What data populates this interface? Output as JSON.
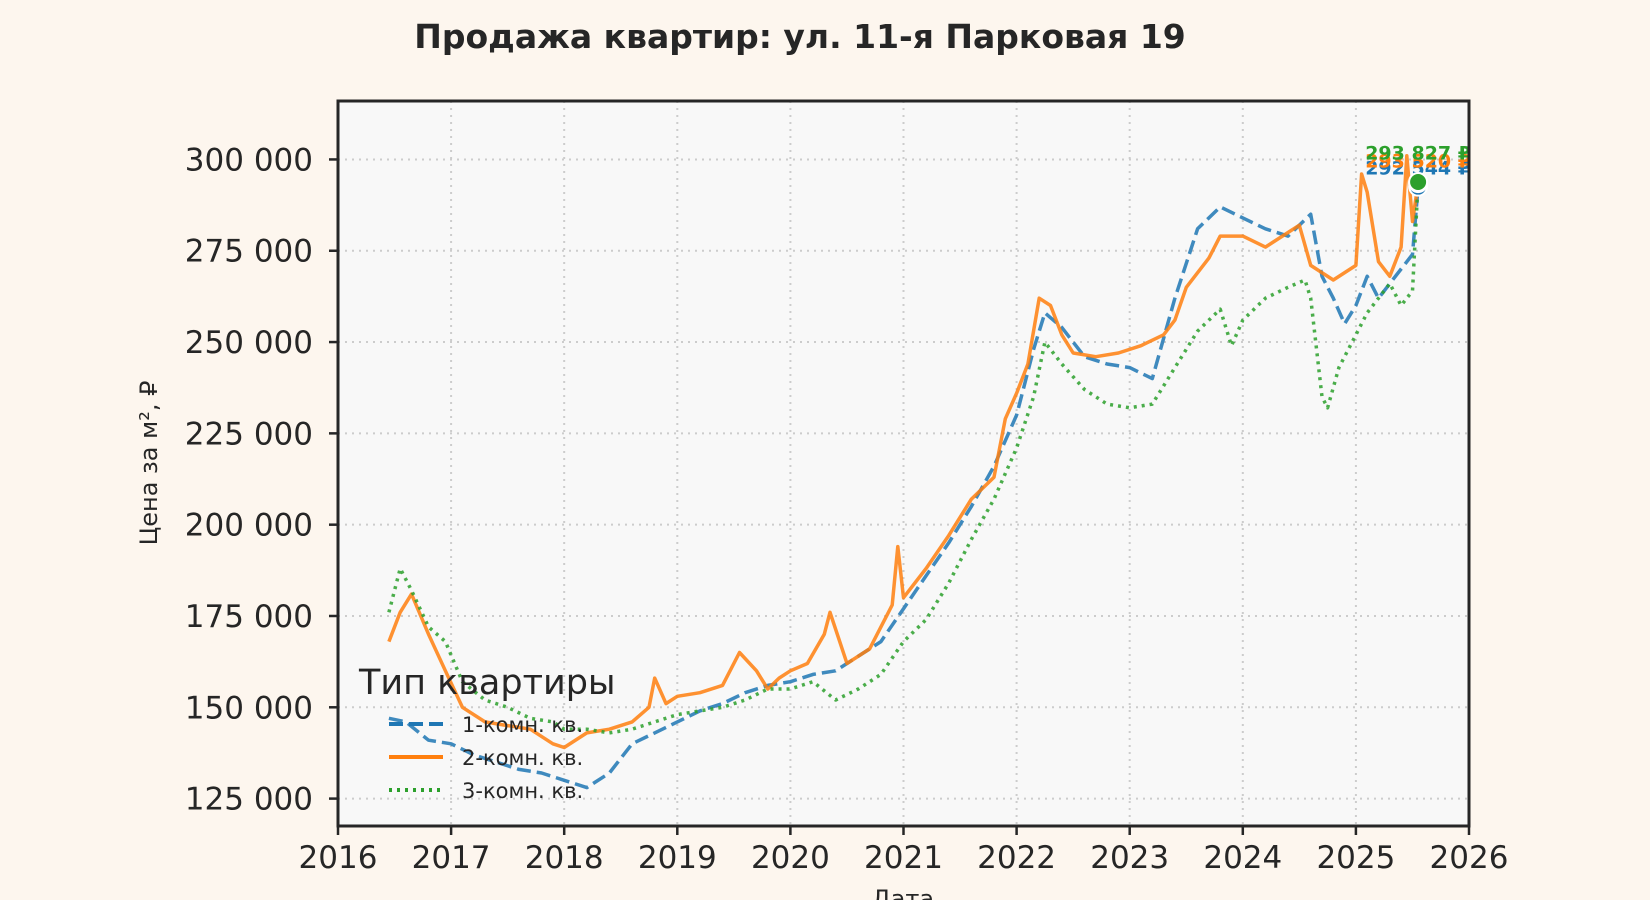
{
  "chart_data": {
    "type": "line",
    "title": "Продажа квартир: ул. 11-я Парковая 19",
    "xlabel": "Дата",
    "ylabel": "Цена за м², ₽",
    "xlim": [
      2016.0,
      2026.0
    ],
    "ylim": [
      117500,
      316000
    ],
    "x_ticks": [
      2016,
      2017,
      2018,
      2019,
      2020,
      2021,
      2022,
      2023,
      2024,
      2025,
      2026
    ],
    "y_ticks": [
      125000,
      150000,
      175000,
      200000,
      225000,
      250000,
      275000,
      300000
    ],
    "y_tick_labels": [
      "125 000",
      "150 000",
      "175 000",
      "200 000",
      "225 000",
      "250 000",
      "275 000",
      "300 000"
    ],
    "grid": true,
    "legend": {
      "title": "Тип квартиры",
      "placement": "lower-left"
    },
    "series": [
      {
        "name": "1-комн. кв.",
        "color": "#1f77b4",
        "dash": "dashed",
        "end_label": "292 544 ₽",
        "x": [
          2016.45,
          2016.6,
          2016.8,
          2017.0,
          2017.2,
          2017.4,
          2017.6,
          2017.8,
          2018.0,
          2018.2,
          2018.4,
          2018.6,
          2018.8,
          2019.0,
          2019.2,
          2019.4,
          2019.6,
          2019.8,
          2020.0,
          2020.2,
          2020.4,
          2020.6,
          2020.8,
          2021.0,
          2021.2,
          2021.4,
          2021.6,
          2021.8,
          2022.0,
          2022.15,
          2022.25,
          2022.4,
          2022.6,
          2022.8,
          2023.0,
          2023.2,
          2023.4,
          2023.6,
          2023.8,
          2024.0,
          2024.2,
          2024.4,
          2024.6,
          2024.7,
          2024.8,
          2024.9,
          2025.0,
          2025.1,
          2025.2,
          2025.3,
          2025.4,
          2025.5,
          2025.55
        ],
        "y": [
          147000,
          146000,
          141000,
          140000,
          137000,
          135000,
          133000,
          132000,
          130000,
          128000,
          132000,
          140000,
          143000,
          146000,
          149000,
          151000,
          154000,
          156000,
          157000,
          159000,
          160000,
          164000,
          168000,
          177000,
          186000,
          195000,
          205000,
          216000,
          230000,
          248000,
          258000,
          254000,
          246000,
          244000,
          243000,
          240000,
          262000,
          281000,
          287000,
          284000,
          281000,
          279000,
          285000,
          268000,
          262000,
          255000,
          260000,
          268000,
          262000,
          266000,
          270000,
          274000,
          292544
        ]
      },
      {
        "name": "2-комн. кв.",
        "color": "#ff7f0e",
        "dash": "solid",
        "end_label": "293 520 ₽",
        "x": [
          2016.45,
          2016.55,
          2016.65,
          2016.8,
          2016.95,
          2017.1,
          2017.3,
          2017.5,
          2017.7,
          2017.9,
          2018.0,
          2018.2,
          2018.4,
          2018.6,
          2018.75,
          2018.8,
          2018.9,
          2019.0,
          2019.2,
          2019.4,
          2019.55,
          2019.7,
          2019.8,
          2019.9,
          2020.0,
          2020.15,
          2020.3,
          2020.35,
          2020.5,
          2020.7,
          2020.9,
          2020.95,
          2021.0,
          2021.2,
          2021.4,
          2021.6,
          2021.8,
          2021.9,
          2022.0,
          2022.1,
          2022.2,
          2022.3,
          2022.4,
          2022.5,
          2022.7,
          2022.9,
          2023.1,
          2023.3,
          2023.4,
          2023.5,
          2023.7,
          2023.8,
          2024.0,
          2024.2,
          2024.4,
          2024.5,
          2024.6,
          2024.8,
          2025.0,
          2025.05,
          2025.1,
          2025.2,
          2025.3,
          2025.4,
          2025.45,
          2025.5,
          2025.55
        ],
        "y": [
          168000,
          176000,
          181000,
          170000,
          160000,
          150000,
          146000,
          145000,
          144000,
          140000,
          139000,
          143000,
          144000,
          146000,
          150000,
          158000,
          151000,
          153000,
          154000,
          156000,
          165000,
          160000,
          155000,
          158000,
          160000,
          162000,
          170000,
          176000,
          162000,
          166000,
          178000,
          194000,
          180000,
          188000,
          197000,
          207000,
          213000,
          229000,
          236000,
          244000,
          262000,
          260000,
          252000,
          247000,
          246000,
          247000,
          249000,
          252000,
          256000,
          265000,
          273000,
          279000,
          279000,
          276000,
          280000,
          282000,
          271000,
          267000,
          271000,
          296000,
          291000,
          272000,
          268000,
          276000,
          301000,
          283000,
          293520
        ]
      },
      {
        "name": "3-комн. кв.",
        "color": "#2ca02c",
        "dash": "dotted",
        "end_label": "293 827 ₽",
        "x": [
          2016.45,
          2016.55,
          2016.65,
          2016.8,
          2016.95,
          2017.1,
          2017.3,
          2017.5,
          2017.7,
          2017.9,
          2018.0,
          2018.2,
          2018.4,
          2018.6,
          2018.8,
          2019.0,
          2019.2,
          2019.4,
          2019.6,
          2019.8,
          2020.0,
          2020.2,
          2020.4,
          2020.6,
          2020.8,
          2021.0,
          2021.2,
          2021.4,
          2021.6,
          2021.8,
          2022.0,
          2022.15,
          2022.25,
          2022.4,
          2022.6,
          2022.8,
          2023.0,
          2023.2,
          2023.4,
          2023.6,
          2023.8,
          2023.9,
          2024.0,
          2024.2,
          2024.4,
          2024.55,
          2024.6,
          2024.7,
          2024.75,
          2024.85,
          2025.0,
          2025.1,
          2025.2,
          2025.3,
          2025.4,
          2025.5,
          2025.55
        ],
        "y": [
          176000,
          188000,
          182000,
          172000,
          168000,
          157000,
          152000,
          150000,
          147000,
          146000,
          144000,
          144000,
          143000,
          144000,
          146000,
          148000,
          149000,
          150000,
          152000,
          155000,
          155000,
          157000,
          152000,
          155000,
          159000,
          168000,
          174000,
          184000,
          196000,
          207000,
          221000,
          235000,
          250000,
          244000,
          237000,
          233000,
          232000,
          233000,
          243000,
          253000,
          259000,
          249000,
          256000,
          262000,
          265000,
          267000,
          262000,
          235000,
          232000,
          243000,
          252000,
          258000,
          262000,
          266000,
          260000,
          264000,
          293827
        ]
      }
    ]
  }
}
